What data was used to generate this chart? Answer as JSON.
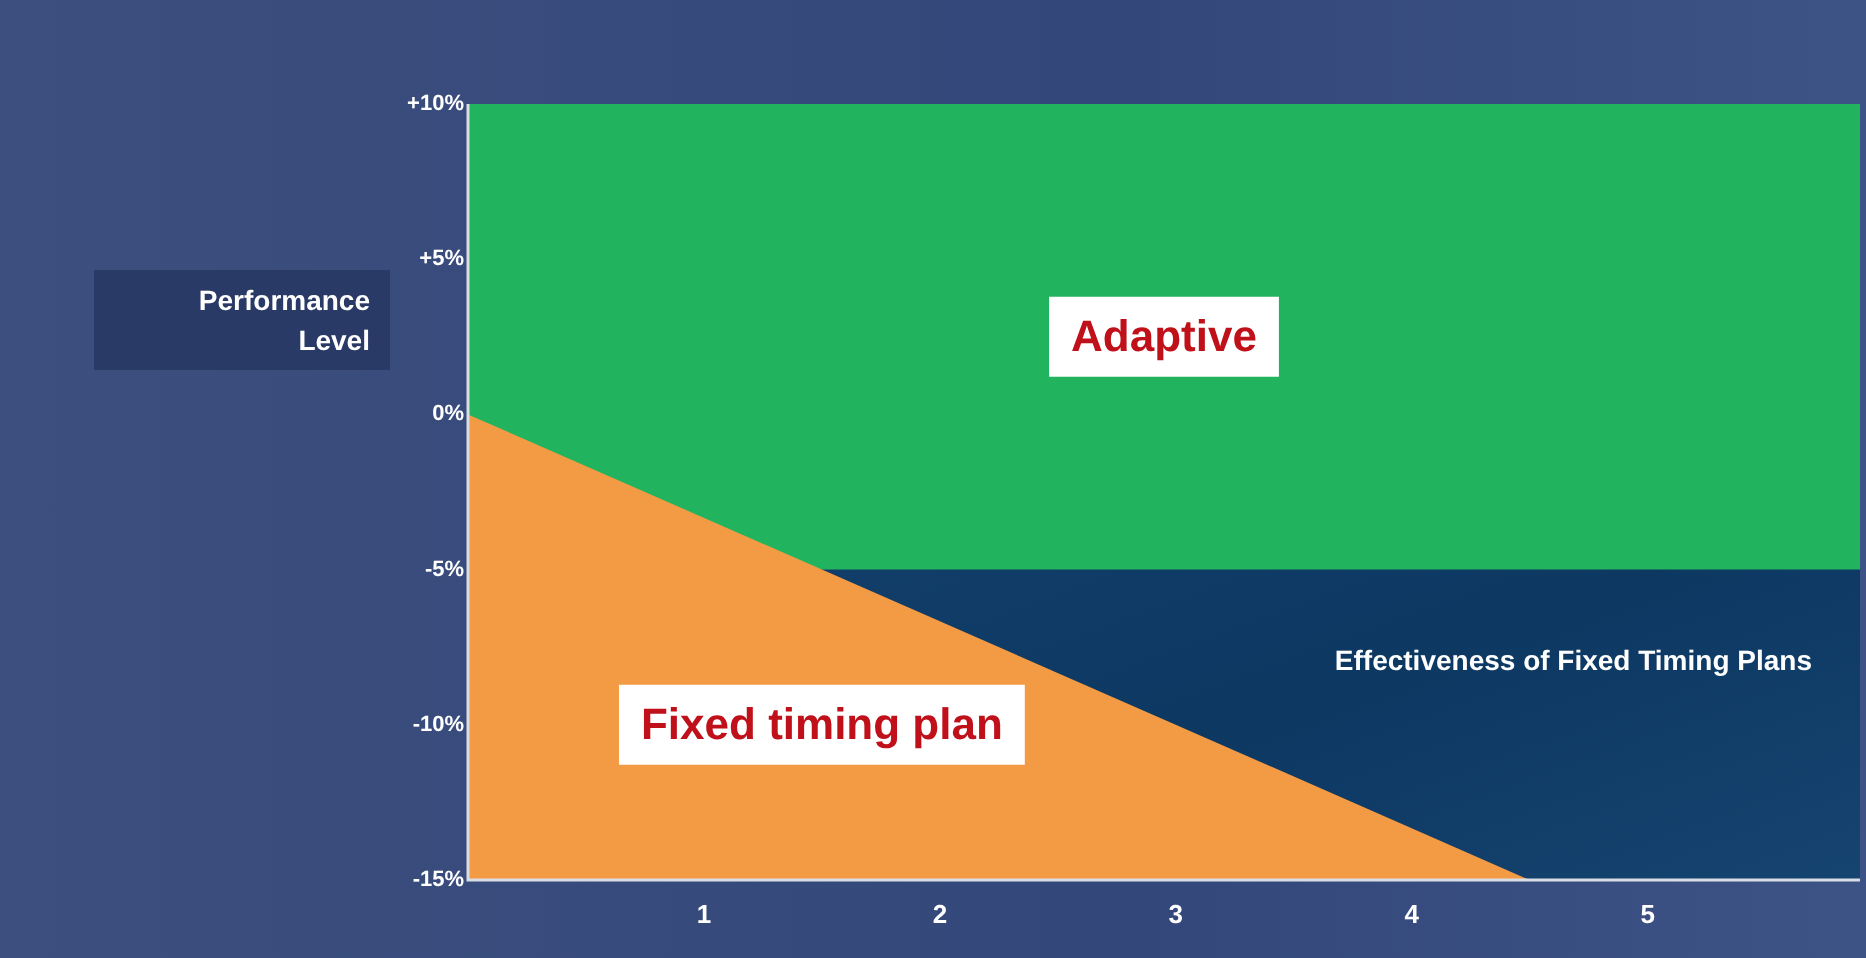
{
  "chart_data": {
    "type": "area",
    "xlabel": "Effectiveness of Fixed Timing Plans",
    "ylabel": "Performance Level",
    "xlim": [
      0,
      5.9
    ],
    "xticks": [
      1,
      2,
      3,
      4,
      5
    ],
    "ylim": [
      -15,
      10
    ],
    "yticks": [
      {
        "value": 10,
        "label": "+10%"
      },
      {
        "value": 5,
        "label": "+5%"
      },
      {
        "value": 0,
        "label": "0%"
      },
      {
        "value": -5,
        "label": "-5%"
      },
      {
        "value": -10,
        "label": "-10%"
      },
      {
        "value": -15,
        "label": "-15%"
      }
    ],
    "grid": false,
    "legend": false,
    "bands": [
      {
        "axis": "y",
        "from": -5,
        "to": 10,
        "label": "Adaptive",
        "color": "#22b35e"
      }
    ],
    "series": [
      {
        "name": "Fixed timing plan",
        "color": "#f39a45",
        "x": [
          0,
          4.5
        ],
        "values": [
          0,
          -15
        ]
      }
    ]
  }
}
